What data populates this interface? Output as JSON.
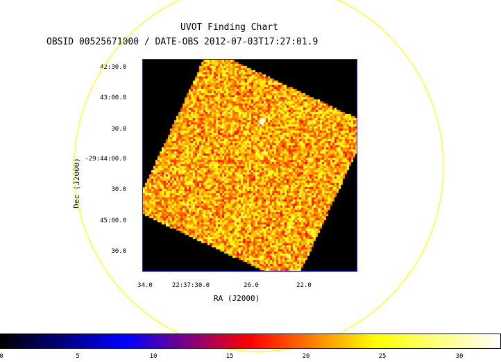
{
  "chart_data": {
    "type": "heatmap",
    "title": "UVOT Finding Chart",
    "subtitle": "OBSID 00525671000 / DATE-OBS 2012-07-03T17:27:01.9",
    "xlabel": "RA (J2000)",
    "ylabel": "Dec (J2000)",
    "x_ticks": [
      "34.0",
      "22:37:30.0",
      "26.0",
      "22.0"
    ],
    "y_ticks": [
      "42:30.0",
      "43:00.0",
      "30.0",
      "-29:44:00.0",
      "30.0",
      "45:00.0",
      "30.0"
    ],
    "colorbar": {
      "range": [
        0,
        32
      ],
      "ticks": [
        "0",
        "5",
        "10",
        "15",
        "20",
        "25",
        "30"
      ],
      "colors": [
        "#000000",
        "#0000ff",
        "#ff0000",
        "#ffff00",
        "#ffffff"
      ]
    },
    "image": {
      "typical_value_range": [
        15,
        28
      ],
      "bright_source_value": 32,
      "rotation_deg": -25,
      "background_color": "#000000"
    },
    "overlay_circle_color": "#ffff00",
    "grid": false
  }
}
